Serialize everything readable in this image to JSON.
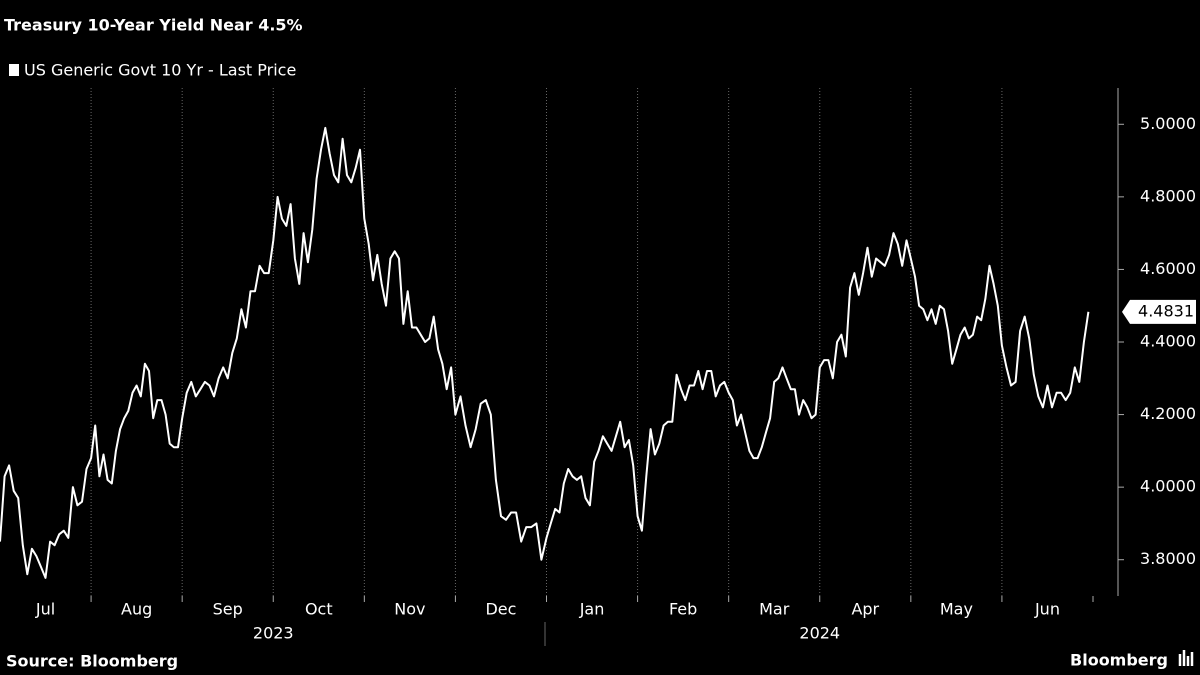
{
  "chart_data": {
    "type": "line",
    "title": "Treasury 10-Year Yield Near 4.5%",
    "categories": [
      "Jul",
      "Aug",
      "Sep",
      "Oct",
      "Nov",
      "Dec",
      "Jan",
      "Feb",
      "Mar",
      "Apr",
      "May",
      "Jun"
    ],
    "year_labels": [
      "2023",
      "2024"
    ],
    "series": [
      {
        "name": "US Generic Govt 10 Yr - Last Price",
        "color": "#ffffff",
        "values": [
          [
            3.85,
            4.03,
            4.06,
            3.99,
            3.97,
            3.84,
            3.76,
            3.83,
            3.81,
            3.78,
            3.75,
            3.85,
            3.84,
            3.87,
            3.88,
            3.86,
            4.0,
            3.95,
            3.96,
            4.05
          ],
          [
            4.08,
            4.17,
            4.03,
            4.09,
            4.02,
            4.01,
            4.1,
            4.16,
            4.19,
            4.21,
            4.26,
            4.28,
            4.25,
            4.34,
            4.32,
            4.19,
            4.24,
            4.24,
            4.2,
            4.12,
            4.11,
            4.11
          ],
          [
            4.19,
            4.26,
            4.29,
            4.25,
            4.27,
            4.29,
            4.28,
            4.25,
            4.3,
            4.33,
            4.3,
            4.37,
            4.41,
            4.49,
            4.44,
            4.54,
            4.54,
            4.61,
            4.59,
            4.59
          ],
          [
            4.68,
            4.8,
            4.74,
            4.72,
            4.78,
            4.63,
            4.56,
            4.7,
            4.62,
            4.71,
            4.85,
            4.93,
            4.99,
            4.92,
            4.86,
            4.84,
            4.96,
            4.86,
            4.84,
            4.88,
            4.93
          ],
          [
            4.74,
            4.67,
            4.57,
            4.64,
            4.56,
            4.5,
            4.63,
            4.65,
            4.63,
            4.45,
            4.54,
            4.44,
            4.44,
            4.42,
            4.4,
            4.41,
            4.47,
            4.38,
            4.34,
            4.27,
            4.33
          ],
          [
            4.2,
            4.25,
            4.17,
            4.11,
            4.16,
            4.23,
            4.24,
            4.2,
            4.02,
            3.92,
            3.91,
            3.93,
            3.93,
            3.85,
            3.89,
            3.89,
            3.9,
            3.8
          ],
          [
            3.86,
            3.9,
            3.94,
            3.93,
            4.01,
            4.05,
            4.03,
            4.02,
            4.03,
            3.97,
            3.95,
            4.07,
            4.1,
            4.14,
            4.12,
            4.1,
            4.14,
            4.18,
            4.11,
            4.13,
            4.06
          ],
          [
            3.92,
            3.88,
            4.03,
            4.16,
            4.09,
            4.12,
            4.17,
            4.18,
            4.18,
            4.31,
            4.27,
            4.24,
            4.28,
            4.28,
            4.32,
            4.27,
            4.32,
            4.32,
            4.25,
            4.28,
            4.29
          ],
          [
            4.26,
            4.24,
            4.17,
            4.2,
            4.15,
            4.1,
            4.08,
            4.08,
            4.11,
            4.15,
            4.19,
            4.29,
            4.3,
            4.33,
            4.3,
            4.27,
            4.27,
            4.2,
            4.24,
            4.22,
            4.19,
            4.2
          ],
          [
            4.33,
            4.35,
            4.35,
            4.3,
            4.4,
            4.42,
            4.36,
            4.55,
            4.59,
            4.53,
            4.59,
            4.66,
            4.58,
            4.63,
            4.62,
            4.61,
            4.64,
            4.7,
            4.67,
            4.61,
            4.68
          ],
          [
            4.63,
            4.58,
            4.5,
            4.49,
            4.46,
            4.49,
            4.45,
            4.5,
            4.49,
            4.43,
            4.34,
            4.38,
            4.42,
            4.44,
            4.41,
            4.42,
            4.47,
            4.46,
            4.52,
            4.61,
            4.56,
            4.5
          ],
          [
            4.39,
            4.33,
            4.28,
            4.29,
            4.43,
            4.47,
            4.41,
            4.31,
            4.25,
            4.22,
            4.28,
            4.22,
            4.26,
            4.26,
            4.24,
            4.26,
            4.33,
            4.29,
            4.4,
            4.4831
          ]
        ]
      }
    ],
    "ylim": [
      3.7,
      5.1
    ],
    "yticks": [
      {
        "value": 3.8,
        "label": "3.8000"
      },
      {
        "value": 4.0,
        "label": "4.0000"
      },
      {
        "value": 4.2,
        "label": "4.2000"
      },
      {
        "value": 4.4,
        "label": "4.4000"
      },
      {
        "value": 4.6,
        "label": "4.6000"
      },
      {
        "value": 4.8,
        "label": "4.8000"
      },
      {
        "value": 5.0,
        "label": "5.0000"
      }
    ],
    "grid": true,
    "source": "Source: Bloomberg",
    "brand": "Bloomberg"
  }
}
